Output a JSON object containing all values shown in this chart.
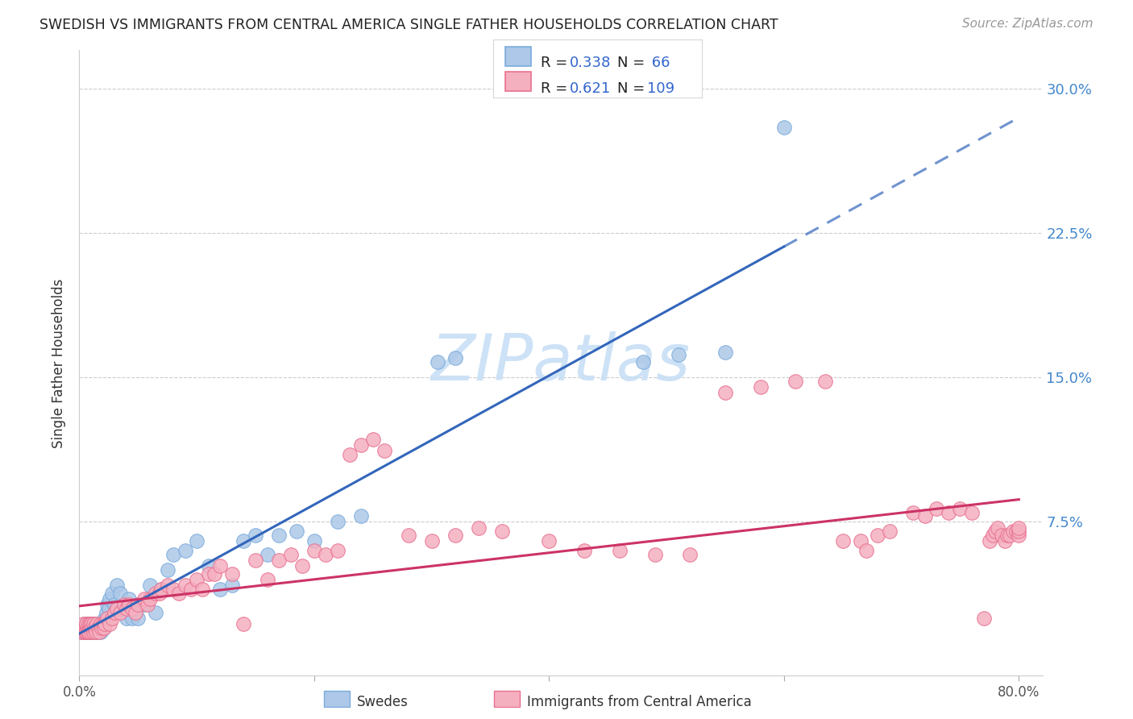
{
  "title": "SWEDISH VS IMMIGRANTS FROM CENTRAL AMERICA SINGLE FATHER HOUSEHOLDS CORRELATION CHART",
  "source": "Source: ZipAtlas.com",
  "ylabel": "Single Father Households",
  "R_swedish": 0.338,
  "N_swedish": 66,
  "R_immigrants": 0.621,
  "N_immigrants": 109,
  "swedish_color": "#adc8e8",
  "swedish_edge": "#7aabdc",
  "immigrants_color": "#f5b0c0",
  "immigrants_edge": "#e87090",
  "trendline_swedish_color": "#3366bb",
  "trendline_immigrants_color": "#cc3366",
  "watermark_color": "#c8dff5",
  "background_color": "#ffffff",
  "xlim": [
    0.0,
    0.82
  ],
  "ylim": [
    -0.005,
    0.32
  ],
  "ytick_values": [
    0.0,
    0.075,
    0.15,
    0.225,
    0.3
  ],
  "ytick_labels": [
    "",
    "7.5%",
    "15.0%",
    "22.5%",
    "30.0%"
  ],
  "xtick_values": [
    0.0,
    0.2,
    0.4,
    0.6,
    0.8
  ],
  "xtick_labels": [
    "0.0%",
    "",
    "",
    "",
    "80.0%"
  ],
  "legend_label_swedish": "R = 0.338  N =  66",
  "legend_label_immigrants": "R = 0.621  N = 109",
  "sw_x": [
    0.002,
    0.003,
    0.004,
    0.005,
    0.005,
    0.006,
    0.007,
    0.007,
    0.008,
    0.008,
    0.009,
    0.01,
    0.01,
    0.011,
    0.012,
    0.012,
    0.013,
    0.014,
    0.015,
    0.015,
    0.016,
    0.017,
    0.018,
    0.019,
    0.02,
    0.021,
    0.022,
    0.023,
    0.024,
    0.025,
    0.026,
    0.028,
    0.03,
    0.032,
    0.035,
    0.038,
    0.04,
    0.042,
    0.045,
    0.048,
    0.05,
    0.055,
    0.06,
    0.065,
    0.07,
    0.075,
    0.08,
    0.09,
    0.1,
    0.11,
    0.12,
    0.13,
    0.14,
    0.15,
    0.16,
    0.17,
    0.185,
    0.2,
    0.22,
    0.24,
    0.305,
    0.32,
    0.48,
    0.51,
    0.55,
    0.6
  ],
  "sw_y": [
    0.018,
    0.02,
    0.018,
    0.022,
    0.018,
    0.02,
    0.018,
    0.022,
    0.018,
    0.02,
    0.022,
    0.018,
    0.022,
    0.02,
    0.018,
    0.022,
    0.02,
    0.018,
    0.022,
    0.018,
    0.02,
    0.022,
    0.018,
    0.02,
    0.022,
    0.02,
    0.025,
    0.028,
    0.032,
    0.03,
    0.035,
    0.038,
    0.032,
    0.042,
    0.038,
    0.03,
    0.025,
    0.035,
    0.025,
    0.03,
    0.025,
    0.032,
    0.042,
    0.028,
    0.04,
    0.05,
    0.058,
    0.06,
    0.065,
    0.052,
    0.04,
    0.042,
    0.065,
    0.068,
    0.058,
    0.068,
    0.07,
    0.065,
    0.075,
    0.078,
    0.158,
    0.16,
    0.158,
    0.162,
    0.163,
    0.28
  ],
  "im_x": [
    0.002,
    0.003,
    0.004,
    0.005,
    0.005,
    0.006,
    0.006,
    0.007,
    0.007,
    0.008,
    0.008,
    0.009,
    0.009,
    0.01,
    0.01,
    0.011,
    0.012,
    0.012,
    0.013,
    0.014,
    0.015,
    0.016,
    0.017,
    0.018,
    0.019,
    0.02,
    0.021,
    0.022,
    0.024,
    0.026,
    0.028,
    0.03,
    0.032,
    0.035,
    0.038,
    0.04,
    0.042,
    0.045,
    0.048,
    0.05,
    0.055,
    0.058,
    0.06,
    0.065,
    0.068,
    0.07,
    0.075,
    0.08,
    0.085,
    0.09,
    0.095,
    0.1,
    0.105,
    0.11,
    0.115,
    0.12,
    0.13,
    0.14,
    0.15,
    0.16,
    0.17,
    0.18,
    0.19,
    0.2,
    0.21,
    0.22,
    0.23,
    0.24,
    0.25,
    0.26,
    0.28,
    0.3,
    0.32,
    0.34,
    0.36,
    0.4,
    0.43,
    0.46,
    0.49,
    0.52,
    0.55,
    0.58,
    0.61,
    0.635,
    0.65,
    0.665,
    0.67,
    0.68,
    0.69,
    0.71,
    0.72,
    0.73,
    0.74,
    0.75,
    0.76,
    0.77,
    0.775,
    0.778,
    0.78,
    0.782,
    0.785,
    0.788,
    0.79,
    0.792,
    0.795,
    0.798,
    0.8,
    0.8,
    0.8
  ],
  "im_y": [
    0.018,
    0.022,
    0.018,
    0.02,
    0.018,
    0.022,
    0.018,
    0.02,
    0.018,
    0.022,
    0.018,
    0.02,
    0.022,
    0.018,
    0.022,
    0.02,
    0.018,
    0.022,
    0.02,
    0.018,
    0.022,
    0.02,
    0.018,
    0.022,
    0.02,
    0.022,
    0.02,
    0.022,
    0.025,
    0.022,
    0.025,
    0.028,
    0.03,
    0.028,
    0.032,
    0.03,
    0.032,
    0.03,
    0.028,
    0.032,
    0.035,
    0.032,
    0.035,
    0.038,
    0.038,
    0.04,
    0.042,
    0.04,
    0.038,
    0.042,
    0.04,
    0.045,
    0.04,
    0.048,
    0.048,
    0.052,
    0.048,
    0.022,
    0.055,
    0.045,
    0.055,
    0.058,
    0.052,
    0.06,
    0.058,
    0.06,
    0.11,
    0.115,
    0.118,
    0.112,
    0.068,
    0.065,
    0.068,
    0.072,
    0.07,
    0.065,
    0.06,
    0.06,
    0.058,
    0.058,
    0.142,
    0.145,
    0.148,
    0.148,
    0.065,
    0.065,
    0.06,
    0.068,
    0.07,
    0.08,
    0.078,
    0.082,
    0.08,
    0.082,
    0.08,
    0.025,
    0.065,
    0.068,
    0.07,
    0.072,
    0.068,
    0.065,
    0.068,
    0.068,
    0.07,
    0.07,
    0.068,
    0.07,
    0.072
  ]
}
